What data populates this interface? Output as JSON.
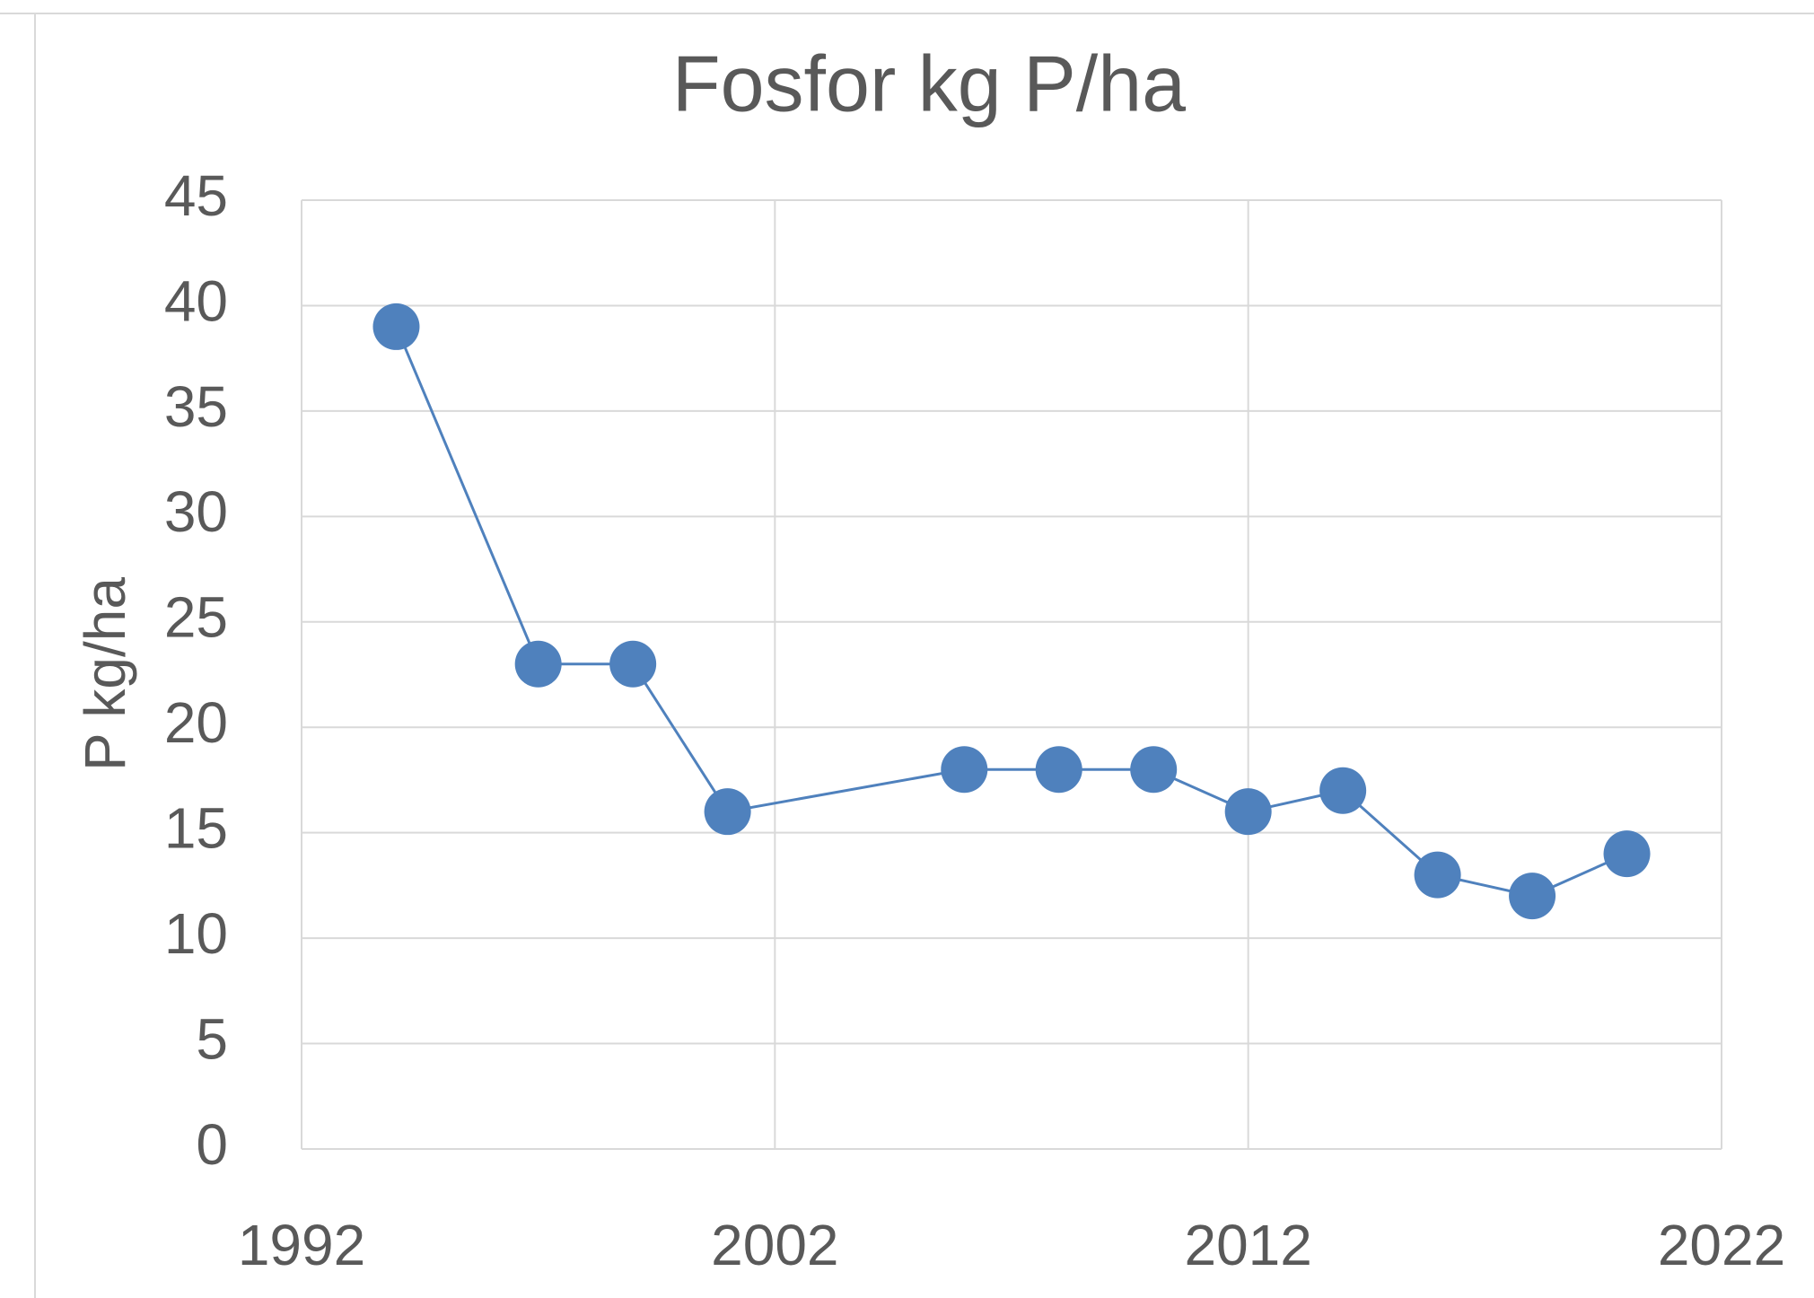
{
  "chart_data": {
    "type": "line",
    "title": "Fosfor kg P/ha",
    "y_label": "P kg/ha",
    "x": [
      1994,
      1997,
      1999,
      2001,
      2006,
      2008,
      2010,
      2012,
      2014,
      2016,
      2018,
      2020
    ],
    "series": [
      {
        "name": "Fosfor",
        "color": "#4f81bd",
        "values": [
          39,
          23,
          23,
          16,
          18,
          18,
          18,
          16,
          17,
          13,
          12,
          14
        ]
      }
    ],
    "xlim": [
      1992,
      2022
    ],
    "xticks": [
      1992,
      2002,
      2012,
      2022
    ],
    "ylim": [
      0,
      45
    ],
    "yticks": [
      0,
      5,
      10,
      15,
      20,
      25,
      30,
      35,
      40,
      45
    ],
    "grid": true
  }
}
